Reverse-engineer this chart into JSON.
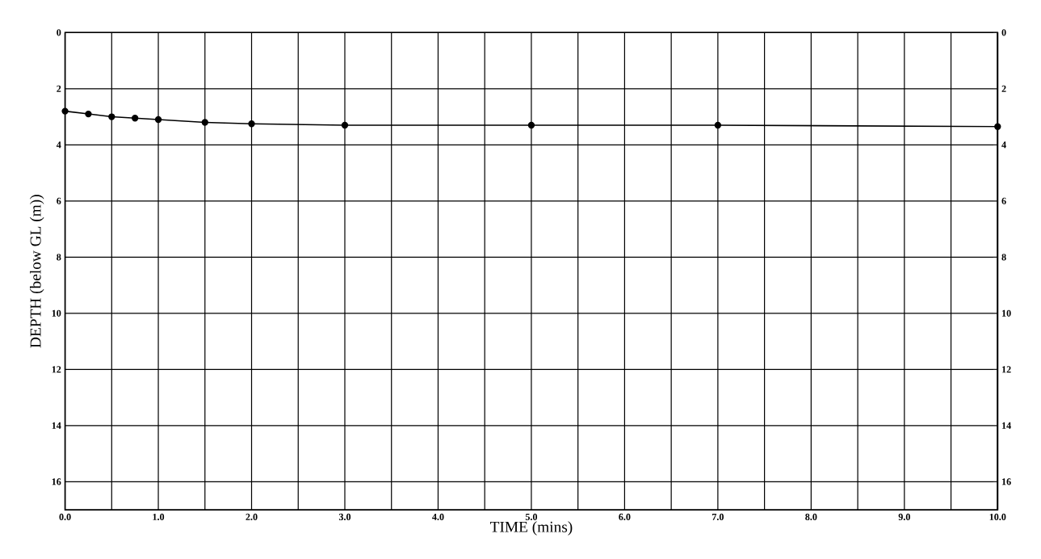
{
  "chart_data": {
    "type": "line",
    "xlabel": "TIME (mins)",
    "ylabel": "DEPTH (below GL (m))",
    "x": [
      0,
      0.25,
      0.5,
      0.75,
      1.0,
      1.5,
      2.0,
      3.0,
      5.0,
      7.0,
      10.0
    ],
    "series": [
      {
        "color": "#000000",
        "values": [
          2.8,
          2.9,
          3.0,
          3.05,
          3.1,
          3.2,
          3.25,
          3.3,
          3.3,
          3.3,
          3.35
        ]
      }
    ],
    "xlim": [
      0,
      10
    ],
    "ylim": [
      17,
      0
    ],
    "y2lim": [
      17,
      0
    ],
    "xticks": [
      {
        "value": 0,
        "label": "0.0"
      },
      {
        "value": 0.5,
        "label": null
      },
      {
        "value": 1,
        "label": "1.0"
      },
      {
        "value": 1.5,
        "label": null
      },
      {
        "value": 2,
        "label": "2.0"
      },
      {
        "value": 2.5,
        "label": null
      },
      {
        "value": 3,
        "label": "3.0"
      },
      {
        "value": 3.5,
        "label": null
      },
      {
        "value": 4,
        "label": "4.0"
      },
      {
        "value": 4.5,
        "label": null
      },
      {
        "value": 5,
        "label": "5.0"
      },
      {
        "value": 5.5,
        "label": null
      },
      {
        "value": 6,
        "label": "6.0"
      },
      {
        "value": 6.5,
        "label": null
      },
      {
        "value": 7,
        "label": "7.0"
      },
      {
        "value": 7.5,
        "label": null
      },
      {
        "value": 8,
        "label": "8.0"
      },
      {
        "value": 8.5,
        "label": null
      },
      {
        "value": 9,
        "label": "9.0"
      },
      {
        "value": 9.5,
        "label": null
      },
      {
        "value": 10,
        "label": "10.0"
      }
    ],
    "yticks": [
      0,
      2,
      4,
      6,
      8,
      10,
      12,
      14,
      16
    ],
    "y2ticks": [
      0,
      2,
      4,
      6,
      8,
      10,
      12,
      14,
      16
    ],
    "grid": true,
    "marker": "circle",
    "line_style": "solid"
  }
}
